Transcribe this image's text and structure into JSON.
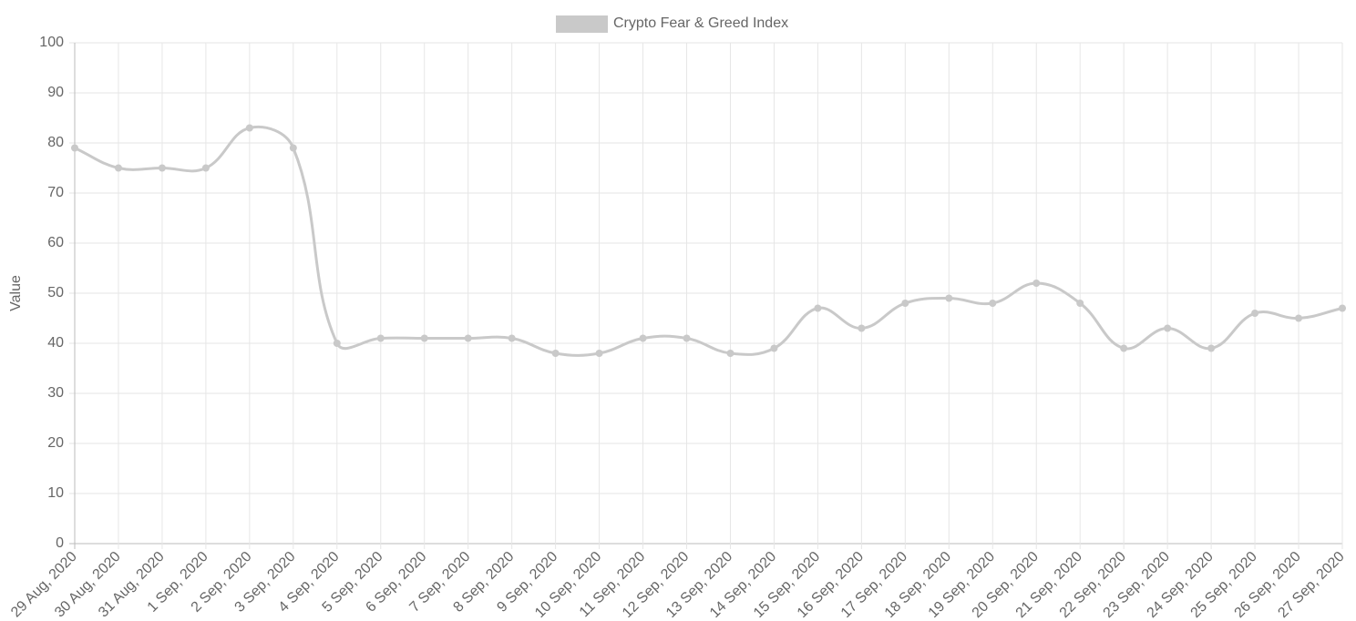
{
  "chart_data": {
    "type": "line",
    "y_label": "Value",
    "categories": [
      "29 Aug, 2020",
      "30 Aug, 2020",
      "31 Aug, 2020",
      "1 Sep, 2020",
      "2 Sep, 2020",
      "3 Sep, 2020",
      "4 Sep, 2020",
      "5 Sep, 2020",
      "6 Sep, 2020",
      "7 Sep, 2020",
      "8 Sep, 2020",
      "9 Sep, 2020",
      "10 Sep, 2020",
      "11 Sep, 2020",
      "12 Sep, 2020",
      "13 Sep, 2020",
      "14 Sep, 2020",
      "15 Sep, 2020",
      "16 Sep, 2020",
      "17 Sep, 2020",
      "18 Sep, 2020",
      "19 Sep, 2020",
      "20 Sep, 2020",
      "21 Sep, 2020",
      "22 Sep, 2020",
      "23 Sep, 2020",
      "24 Sep, 2020",
      "25 Sep, 2020",
      "26 Sep, 2020",
      "27 Sep, 2020"
    ],
    "series": [
      {
        "name": "Crypto Fear & Greed Index",
        "color": "#c9c9c9",
        "values": [
          79,
          75,
          75,
          75,
          83,
          79,
          40,
          41,
          41,
          41,
          41,
          38,
          38,
          41,
          41,
          38,
          39,
          47,
          43,
          48,
          49,
          48,
          52,
          48,
          39,
          43,
          39,
          46,
          45,
          47
        ]
      }
    ],
    "ylim": [
      0,
      100
    ],
    "yticks": [
      0,
      10,
      20,
      30,
      40,
      50,
      60,
      70,
      80,
      90,
      100
    ],
    "grid": true,
    "legend": "top"
  }
}
